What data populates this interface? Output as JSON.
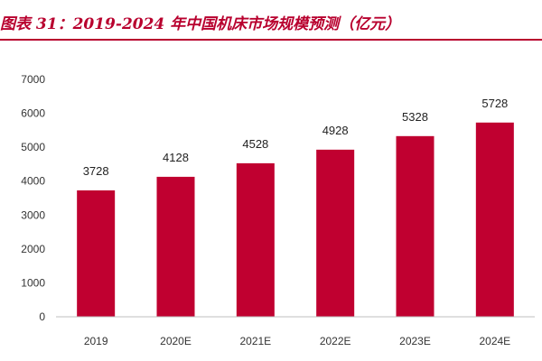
{
  "title": "图表 31：2019-2024 年中国机床市场规模预测（亿元）",
  "colors": {
    "bar": "#c00030",
    "title": "#b8002e",
    "axis": "#bfbfbf"
  },
  "chart_data": {
    "type": "bar",
    "title": "图表 31：2019-2024 年中国机床市场规模预测（亿元）",
    "categories": [
      "2019",
      "2020E",
      "2021E",
      "2022E",
      "2023E",
      "2024E"
    ],
    "values": [
      3728,
      4128,
      4528,
      4928,
      5328,
      5728
    ],
    "data_labels": [
      "3728",
      "4128",
      "4528",
      "4928",
      "5328",
      "5728"
    ],
    "ylim": [
      0,
      7000
    ],
    "yticks": [
      0,
      1000,
      2000,
      3000,
      4000,
      5000,
      6000,
      7000
    ],
    "ytick_labels": [
      "0",
      "1000",
      "2000",
      "3000",
      "4000",
      "5000",
      "6000",
      "7000"
    ],
    "xlabel": "",
    "ylabel": "",
    "grid": false,
    "legend": "none"
  }
}
